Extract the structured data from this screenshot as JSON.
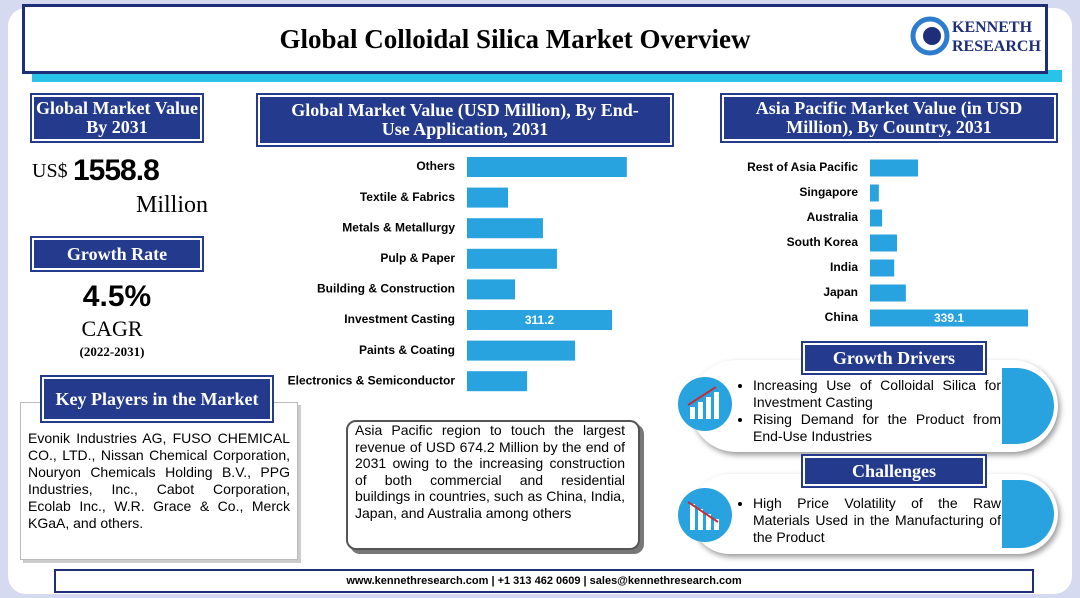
{
  "title": "Global Colloidal Silica Market Overview",
  "logo": {
    "line1": "KENNETH",
    "line2": "RESEARCH"
  },
  "market_value": {
    "heading": "Global Market Value By 2031",
    "prefix": "US$",
    "value": "1558.8",
    "unit": "Million"
  },
  "growth_rate": {
    "heading": "Growth Rate",
    "value": "4.5%",
    "label": "CAGR",
    "period": "(2022-2031)"
  },
  "key_players": {
    "heading": "Key Players in the Market",
    "text": "Evonik Industries AG, FUSO CHEMICAL CO., LTD., Nissan Chemical Corporation, Nouryon Chemicals Holding B.V., PPG Industries, Inc., Cabot Corporation, Ecolab Inc., W.R. Grace & Co., Merck KGaA, and others."
  },
  "note": "Asia Pacific region to touch the largest revenue of USD 674.2 Million by the end of 2031 owing to the increasing construction of both commercial and residential buildings in countries, such as China, India, Japan, and Australia among others",
  "growth_drivers": {
    "heading": "Growth Drivers",
    "items": [
      "Increasing Use of Colloidal Silica for Investment Casting",
      "Rising Demand for the Product from End-Use Industries"
    ]
  },
  "challenges": {
    "heading": "Challenges",
    "items": [
      "High Price Volatility of the Raw Materials Used in the Manufacturing of the Product"
    ]
  },
  "footer": "www.kennethresearch.com | +1 313 462 0609 | sales@kennethresearch.com",
  "chart_data": [
    {
      "type": "bar",
      "orientation": "horizontal",
      "title": "Global Market Value (USD Million), By End-Use Application, 2031",
      "color": "#29a3e0",
      "categories": [
        "Others",
        "Textile & Fabrics",
        "Metals & Metallurgy",
        "Pulp & Paper",
        "Building & Construction",
        "Investment Casting",
        "Paints & Coating",
        "Electronics & Semiconductor"
      ],
      "values": [
        343,
        88,
        163,
        193,
        103,
        311.2,
        232,
        129
      ],
      "value_labels": [
        null,
        null,
        null,
        null,
        null,
        "311.2",
        null,
        null
      ]
    },
    {
      "type": "bar",
      "orientation": "horizontal",
      "title": "Asia Pacific Market Value (in USD Million), By Country, 2031",
      "color": "#29a3e0",
      "categories": [
        "Rest of Asia Pacific",
        "Singapore",
        "Australia",
        "South Korea",
        "India",
        "Japan",
        "China"
      ],
      "values": [
        103,
        19,
        26,
        58,
        52,
        77,
        339.1
      ],
      "value_labels": [
        null,
        null,
        null,
        null,
        null,
        null,
        "339.1"
      ]
    }
  ]
}
